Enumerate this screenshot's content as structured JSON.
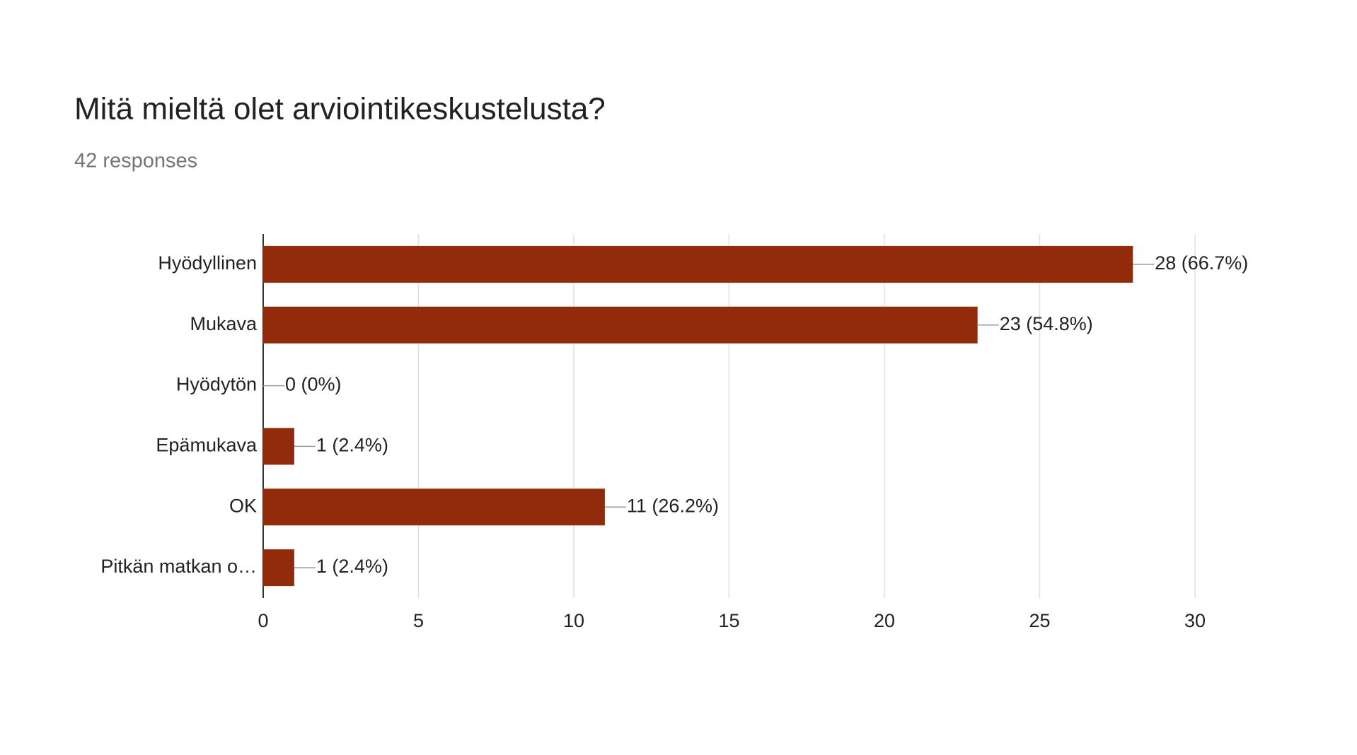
{
  "chart_data": {
    "type": "hbar",
    "title": "Mitä mieltä olet arviointikeskustelusta?",
    "subtitle": "42 responses",
    "categories": [
      "Hyödyllinen",
      "Mukava",
      "Hyödytön",
      "Epämukava",
      "OK",
      "Pitkän matkan o…"
    ],
    "values": [
      28,
      23,
      0,
      1,
      11,
      1
    ],
    "value_labels": [
      "28 (66.7%)",
      "23 (54.8%)",
      "0 (0%)",
      "1 (2.4%)",
      "11 (26.2%)",
      "1 (2.4%)"
    ],
    "color": "#922b0c",
    "xlim": [
      0,
      30
    ],
    "xticks": [
      0,
      5,
      10,
      15,
      20,
      25,
      30
    ],
    "grid": true
  }
}
